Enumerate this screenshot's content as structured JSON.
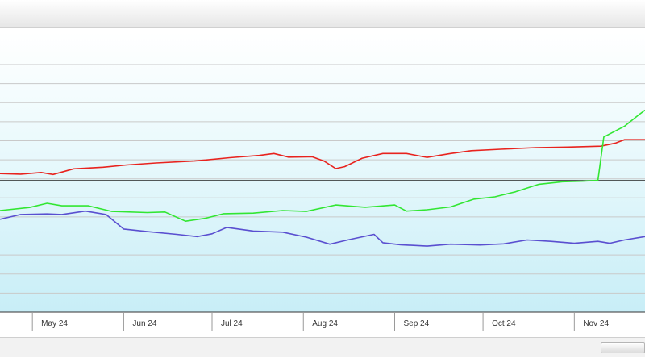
{
  "chart_data": {
    "type": "line",
    "x_axis": {
      "tick_labels": [
        "May 24",
        "Jun 24",
        "Jul 24",
        "Aug 24",
        "Sep 24",
        "Oct 24",
        "Nov 24"
      ],
      "range": [
        "2024-04-20",
        "2024-11-25"
      ]
    },
    "y_axis": {
      "range": [
        0,
        100
      ],
      "labels_visible": false,
      "gridlines": 13
    },
    "reference_line": 47,
    "grid": true,
    "background_gradient": true,
    "series": [
      {
        "color": "#e8231e",
        "points": [
          [
            "2024-04-20",
            49.5
          ],
          [
            "2024-04-27",
            49.3
          ],
          [
            "2024-05-04",
            49.9
          ],
          [
            "2024-05-08",
            49.2
          ],
          [
            "2024-05-15",
            51.2
          ],
          [
            "2024-05-25",
            51.8
          ],
          [
            "2024-06-02",
            52.6
          ],
          [
            "2024-06-12",
            53.3
          ],
          [
            "2024-06-25",
            54.0
          ],
          [
            "2024-07-07",
            55.2
          ],
          [
            "2024-07-17",
            56.0
          ],
          [
            "2024-07-22",
            56.7
          ],
          [
            "2024-07-27",
            55.4
          ],
          [
            "2024-08-04",
            55.5
          ],
          [
            "2024-08-08",
            54.0
          ],
          [
            "2024-08-12",
            51.3
          ],
          [
            "2024-08-15",
            52.0
          ],
          [
            "2024-08-21",
            55.0
          ],
          [
            "2024-08-28",
            56.7
          ],
          [
            "2024-09-05",
            56.7
          ],
          [
            "2024-09-12",
            55.3
          ],
          [
            "2024-09-20",
            56.7
          ],
          [
            "2024-09-27",
            57.7
          ],
          [
            "2024-10-07",
            58.2
          ],
          [
            "2024-10-19",
            58.8
          ],
          [
            "2024-10-30",
            59.0
          ],
          [
            "2024-11-10",
            59.3
          ],
          [
            "2024-11-15",
            60.4
          ],
          [
            "2024-11-18",
            61.6
          ],
          [
            "2024-11-25",
            61.6
          ]
        ]
      },
      {
        "color": "#32e632",
        "points": [
          [
            "2024-04-20",
            36.3
          ],
          [
            "2024-04-30",
            37.4
          ],
          [
            "2024-05-06",
            38.9
          ],
          [
            "2024-05-11",
            38.0
          ],
          [
            "2024-05-20",
            38.0
          ],
          [
            "2024-05-28",
            36.0
          ],
          [
            "2024-06-09",
            35.6
          ],
          [
            "2024-06-15",
            35.8
          ],
          [
            "2024-06-22",
            32.5
          ],
          [
            "2024-06-29",
            33.6
          ],
          [
            "2024-07-05",
            35.2
          ],
          [
            "2024-07-15",
            35.4
          ],
          [
            "2024-07-25",
            36.3
          ],
          [
            "2024-08-02",
            36.0
          ],
          [
            "2024-08-12",
            38.3
          ],
          [
            "2024-08-22",
            37.5
          ],
          [
            "2024-09-01",
            38.3
          ],
          [
            "2024-09-05",
            36.1
          ],
          [
            "2024-09-12",
            36.6
          ],
          [
            "2024-09-20",
            37.6
          ],
          [
            "2024-09-28",
            40.4
          ],
          [
            "2024-10-05",
            41.2
          ],
          [
            "2024-10-12",
            43.0
          ],
          [
            "2024-10-20",
            45.7
          ],
          [
            "2024-10-28",
            46.6
          ],
          [
            "2024-11-04",
            46.8
          ],
          [
            "2024-11-09",
            47.1
          ],
          [
            "2024-11-11",
            62.6
          ],
          [
            "2024-11-18",
            66.4
          ],
          [
            "2024-11-23",
            70.6
          ],
          [
            "2024-11-25",
            72.2
          ]
        ]
      },
      {
        "color": "#5a4fd0",
        "points": [
          [
            "2024-04-20",
            33.2
          ],
          [
            "2024-04-27",
            34.9
          ],
          [
            "2024-05-06",
            35.1
          ],
          [
            "2024-05-11",
            34.9
          ],
          [
            "2024-05-19",
            36.1
          ],
          [
            "2024-05-26",
            34.9
          ],
          [
            "2024-06-01",
            29.7
          ],
          [
            "2024-06-09",
            28.8
          ],
          [
            "2024-06-19",
            27.8
          ],
          [
            "2024-06-26",
            27.0
          ],
          [
            "2024-07-01",
            28.0
          ],
          [
            "2024-07-06",
            30.3
          ],
          [
            "2024-07-15",
            29.0
          ],
          [
            "2024-07-25",
            28.6
          ],
          [
            "2024-08-02",
            26.8
          ],
          [
            "2024-08-10",
            24.3
          ],
          [
            "2024-08-16",
            25.8
          ],
          [
            "2024-08-25",
            27.8
          ],
          [
            "2024-08-28",
            24.8
          ],
          [
            "2024-09-03",
            24.1
          ],
          [
            "2024-09-12",
            23.6
          ],
          [
            "2024-09-20",
            24.3
          ],
          [
            "2024-09-30",
            24.0
          ],
          [
            "2024-10-08",
            24.4
          ],
          [
            "2024-10-16",
            25.8
          ],
          [
            "2024-10-24",
            25.3
          ],
          [
            "2024-11-01",
            24.6
          ],
          [
            "2024-11-09",
            25.3
          ],
          [
            "2024-11-13",
            24.6
          ],
          [
            "2024-11-18",
            25.8
          ],
          [
            "2024-11-25",
            27.0
          ]
        ]
      }
    ]
  }
}
